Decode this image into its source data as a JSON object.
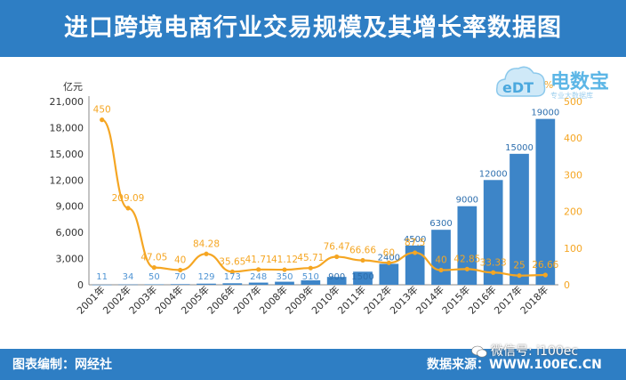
{
  "header": {
    "title": "进口跨境电商行业交易规模及其增长率数据图"
  },
  "logo": {
    "name": "电数宝",
    "badge": "eDT",
    "subtitle": "专业大数据库"
  },
  "footer": {
    "left_text": "图表编制：网经社",
    "right_text": "数据来源：WWW.100EC.CN"
  },
  "watermark": {
    "text": "微信号: i100ec"
  },
  "colors": {
    "header": "#2e7ec4",
    "bar": "#3d85c8",
    "line": "#f5a623"
  },
  "chart_data": {
    "type": "bar",
    "categories": [
      "2001年",
      "2002年",
      "2003年",
      "2004年",
      "2005年",
      "2006年",
      "2007年",
      "2008年",
      "2009年",
      "2010年",
      "2011年",
      "2012年",
      "2013年",
      "2014年",
      "2015年",
      "2016年",
      "2017年",
      "2018年"
    ],
    "series": [
      {
        "type": "bar",
        "axis": "left",
        "values": [
          11,
          34,
          50,
          70,
          129,
          173,
          248,
          350,
          510,
          900,
          1500,
          2400,
          4500,
          6300,
          9000,
          12000,
          15000,
          19000
        ]
      },
      {
        "type": "line",
        "axis": "right",
        "values": [
          450,
          209.09,
          47.05,
          40,
          84.28,
          35.65,
          41.71,
          41.12,
          45.71,
          76.47,
          66.66,
          60,
          87.5,
          40,
          42.85,
          33.33,
          25,
          26.66
        ]
      }
    ],
    "ylabel": "亿元",
    "y2label": "%",
    "ylim": [
      0,
      21000
    ],
    "y2lim": [
      0,
      500
    ],
    "yticks": [
      "0",
      "3,000",
      "6,000",
      "9,000",
      "12,000",
      "15,000",
      "18,000",
      "21,000"
    ],
    "y2ticks": [
      "0",
      "100",
      "200",
      "300",
      "400",
      "500"
    ],
    "grid": false
  }
}
